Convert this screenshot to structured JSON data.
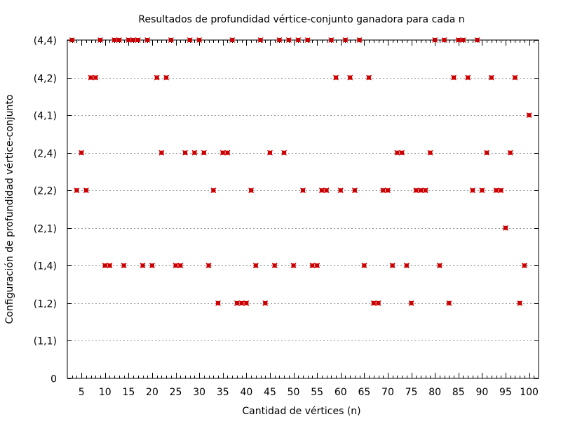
{
  "chart_data": {
    "type": "scatter",
    "title": "Resultados de profundidad vértice-conjunto ganadora para cada n",
    "xlabel": "Cantidad de vértices (n)",
    "ylabel": "Configuración de profundidad vértice-conjunto",
    "xlim": [
      2,
      102
    ],
    "ylim": [
      0,
      9
    ],
    "x_ticks": [
      5,
      10,
      15,
      20,
      25,
      30,
      35,
      40,
      45,
      50,
      55,
      60,
      65,
      70,
      75,
      80,
      85,
      90,
      95,
      100
    ],
    "y_tick_labels": [
      "0",
      "(1,1)",
      "(1,2)",
      "(1,4)",
      "(2,1)",
      "(2,2)",
      "(2,4)",
      "(4,1)",
      "(4,2)",
      "(4,4)"
    ],
    "grid": "horizontal dotted",
    "marker_color": "#cc0000",
    "points": [
      {
        "x": 3,
        "y": 9
      },
      {
        "x": 4,
        "y": 5
      },
      {
        "x": 5,
        "y": 6
      },
      {
        "x": 6,
        "y": 5
      },
      {
        "x": 7,
        "y": 8
      },
      {
        "x": 8,
        "y": 8
      },
      {
        "x": 9,
        "y": 9
      },
      {
        "x": 10,
        "y": 3
      },
      {
        "x": 11,
        "y": 3
      },
      {
        "x": 12,
        "y": 9
      },
      {
        "x": 13,
        "y": 9
      },
      {
        "x": 14,
        "y": 3
      },
      {
        "x": 15,
        "y": 9
      },
      {
        "x": 16,
        "y": 9
      },
      {
        "x": 17,
        "y": 9
      },
      {
        "x": 18,
        "y": 3
      },
      {
        "x": 19,
        "y": 9
      },
      {
        "x": 20,
        "y": 3
      },
      {
        "x": 21,
        "y": 8
      },
      {
        "x": 22,
        "y": 6
      },
      {
        "x": 23,
        "y": 8
      },
      {
        "x": 24,
        "y": 9
      },
      {
        "x": 25,
        "y": 3
      },
      {
        "x": 26,
        "y": 3
      },
      {
        "x": 27,
        "y": 6
      },
      {
        "x": 28,
        "y": 9
      },
      {
        "x": 29,
        "y": 6
      },
      {
        "x": 30,
        "y": 9
      },
      {
        "x": 31,
        "y": 6
      },
      {
        "x": 32,
        "y": 3
      },
      {
        "x": 33,
        "y": 5
      },
      {
        "x": 34,
        "y": 2
      },
      {
        "x": 35,
        "y": 6
      },
      {
        "x": 36,
        "y": 6
      },
      {
        "x": 37,
        "y": 9
      },
      {
        "x": 38,
        "y": 2
      },
      {
        "x": 39,
        "y": 2
      },
      {
        "x": 40,
        "y": 2
      },
      {
        "x": 41,
        "y": 5
      },
      {
        "x": 42,
        "y": 3
      },
      {
        "x": 43,
        "y": 9
      },
      {
        "x": 44,
        "y": 2
      },
      {
        "x": 45,
        "y": 6
      },
      {
        "x": 46,
        "y": 3
      },
      {
        "x": 47,
        "y": 9
      },
      {
        "x": 48,
        "y": 6
      },
      {
        "x": 49,
        "y": 9
      },
      {
        "x": 50,
        "y": 3
      },
      {
        "x": 51,
        "y": 9
      },
      {
        "x": 52,
        "y": 5
      },
      {
        "x": 53,
        "y": 9
      },
      {
        "x": 54,
        "y": 3
      },
      {
        "x": 55,
        "y": 3
      },
      {
        "x": 56,
        "y": 5
      },
      {
        "x": 57,
        "y": 5
      },
      {
        "x": 58,
        "y": 9
      },
      {
        "x": 59,
        "y": 8
      },
      {
        "x": 60,
        "y": 5
      },
      {
        "x": 61,
        "y": 9
      },
      {
        "x": 62,
        "y": 8
      },
      {
        "x": 63,
        "y": 5
      },
      {
        "x": 64,
        "y": 9
      },
      {
        "x": 65,
        "y": 3
      },
      {
        "x": 66,
        "y": 8
      },
      {
        "x": 67,
        "y": 2
      },
      {
        "x": 68,
        "y": 2
      },
      {
        "x": 69,
        "y": 5
      },
      {
        "x": 70,
        "y": 5
      },
      {
        "x": 71,
        "y": 3
      },
      {
        "x": 72,
        "y": 6
      },
      {
        "x": 73,
        "y": 6
      },
      {
        "x": 74,
        "y": 3
      },
      {
        "x": 75,
        "y": 2
      },
      {
        "x": 76,
        "y": 5
      },
      {
        "x": 77,
        "y": 5
      },
      {
        "x": 78,
        "y": 5
      },
      {
        "x": 79,
        "y": 6
      },
      {
        "x": 80,
        "y": 9
      },
      {
        "x": 81,
        "y": 3
      },
      {
        "x": 82,
        "y": 9
      },
      {
        "x": 83,
        "y": 2
      },
      {
        "x": 84,
        "y": 8
      },
      {
        "x": 85,
        "y": 9
      },
      {
        "x": 86,
        "y": 9
      },
      {
        "x": 87,
        "y": 8
      },
      {
        "x": 88,
        "y": 5
      },
      {
        "x": 89,
        "y": 9
      },
      {
        "x": 90,
        "y": 5
      },
      {
        "x": 91,
        "y": 6
      },
      {
        "x": 92,
        "y": 8
      },
      {
        "x": 93,
        "y": 5
      },
      {
        "x": 94,
        "y": 5
      },
      {
        "x": 95,
        "y": 4
      },
      {
        "x": 96,
        "y": 6
      },
      {
        "x": 97,
        "y": 8
      },
      {
        "x": 98,
        "y": 2
      },
      {
        "x": 99,
        "y": 3
      },
      {
        "x": 100,
        "y": 7
      }
    ]
  }
}
